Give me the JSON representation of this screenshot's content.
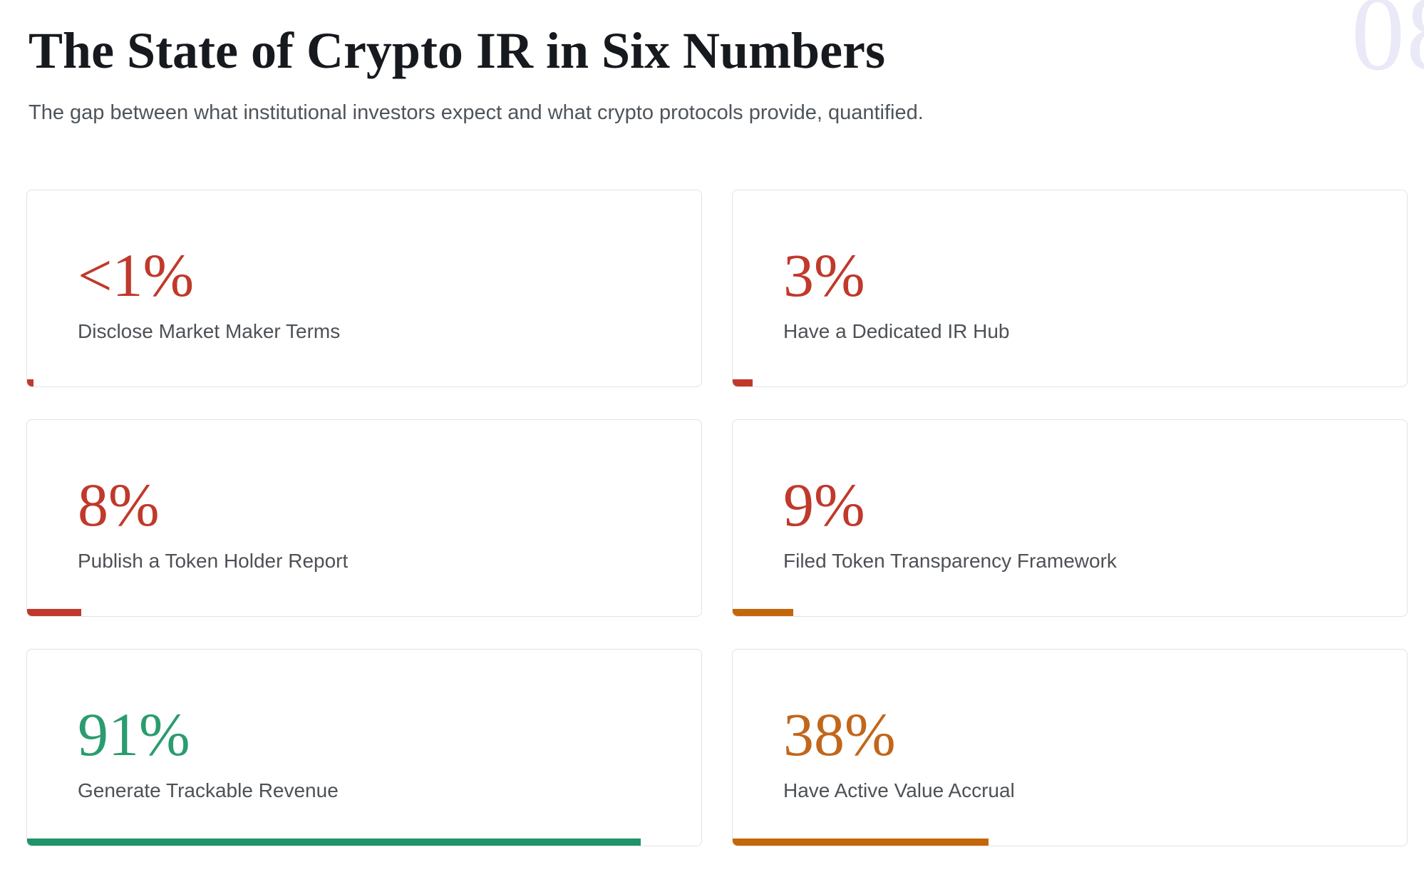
{
  "page": {
    "watermark": "08",
    "title": "The State of Crypto IR in Six Numbers",
    "subtitle": "The gap between what institutional investors expect and what crypto protocols provide, quantified."
  },
  "colors": {
    "accent_red": "#c0392b",
    "accent_green": "#2a9c6e",
    "accent_green_bar": "#1f9468",
    "accent_orange": "#c2661b",
    "accent_orange_bar": "#c4660a",
    "watermark": "#e9e9f7",
    "card_border": "#e3e3e3",
    "text_primary": "#16191d",
    "text_secondary": "#4e545a"
  },
  "stats": [
    {
      "value": "<1%",
      "label": "Disclose Market Maker Terms",
      "value_color": "#c0392b",
      "bar_color": "#c0392b",
      "bar_width": "1%"
    },
    {
      "value": "3%",
      "label": "Have a Dedicated IR Hub",
      "value_color": "#c0392b",
      "bar_color": "#c0392b",
      "bar_width": "3%"
    },
    {
      "value": "8%",
      "label": "Publish a Token Holder Report",
      "value_color": "#c0392b",
      "bar_color": "#c0392b",
      "bar_width": "8%"
    },
    {
      "value": "9%",
      "label": "Filed Token Transparency Framework",
      "value_color": "#c0392b",
      "bar_color": "#c4660a",
      "bar_width": "9%"
    },
    {
      "value": "91%",
      "label": "Generate Trackable Revenue",
      "value_color": "#2a9c6e",
      "bar_color": "#1f9468",
      "bar_width": "91%"
    },
    {
      "value": "38%",
      "label": "Have Active Value Accrual",
      "value_color": "#c2661b",
      "bar_color": "#c4660a",
      "bar_width": "38%"
    }
  ]
}
